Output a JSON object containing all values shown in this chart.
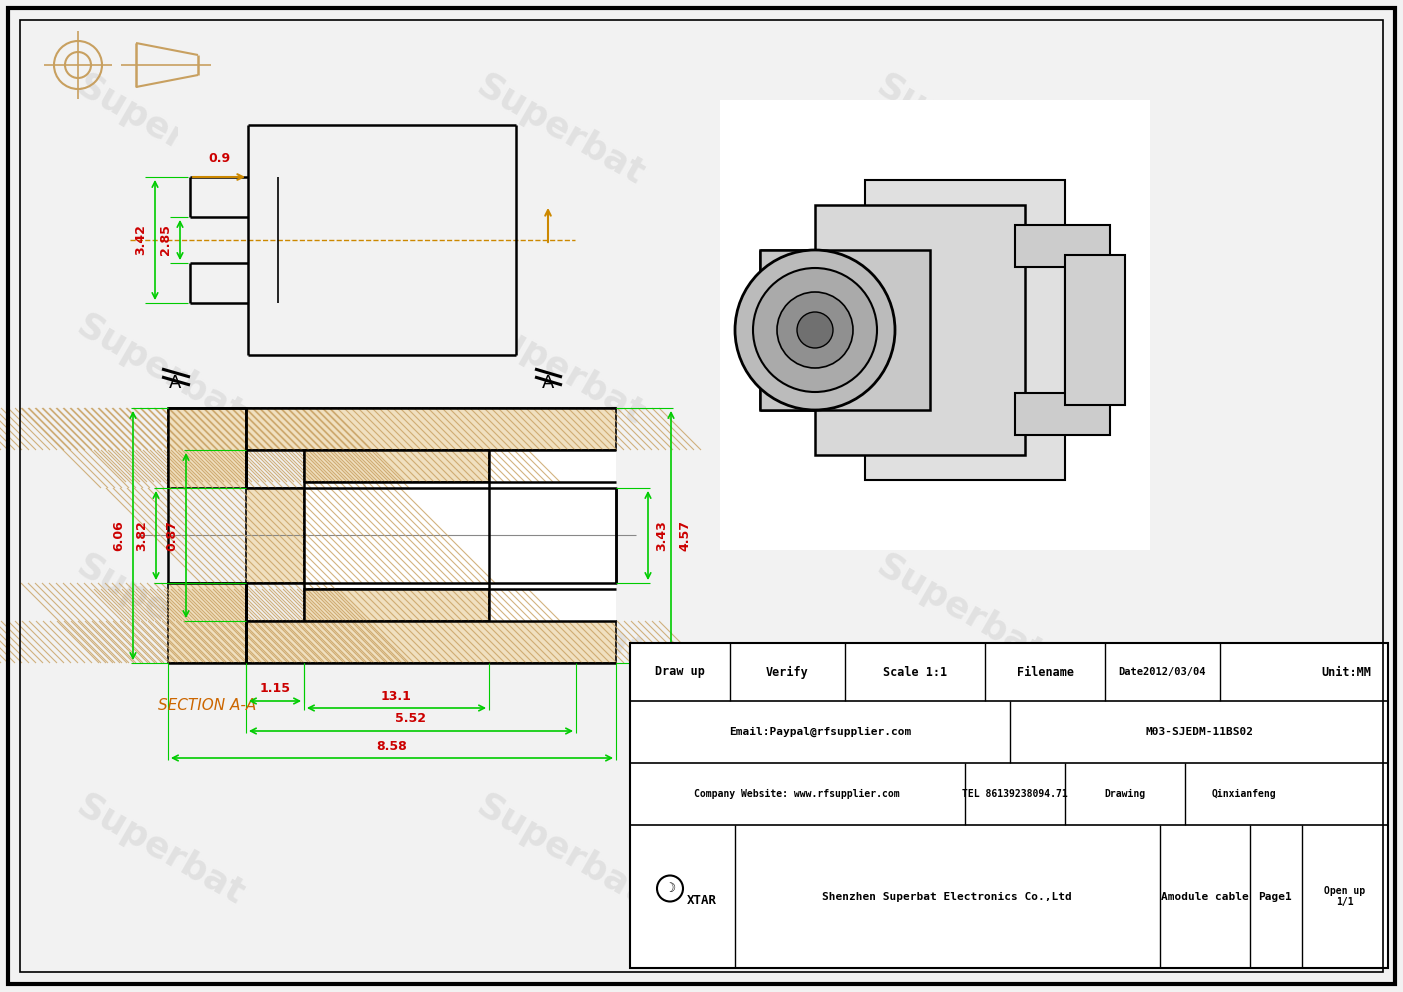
{
  "bg_color": "#f2f2f2",
  "border_color": "#000000",
  "line_color": "#000000",
  "dim_color": "#00cc00",
  "dim_color2": "#cc0000",
  "centerline_color": "#cc8800",
  "hatch_color": "#cc8800",
  "watermark_color": "#cccccc",
  "watermark_text": "Superbat",
  "dims_top": {
    "d342": "3.42",
    "d285": "2.85",
    "d09": "0.9"
  },
  "dims_section": {
    "d606": "6.06",
    "d382": "3.82",
    "d087": "0.87",
    "d343": "3.43",
    "d457": "4.57",
    "d115": "1.15",
    "d131": "13.1",
    "d552": "5.52",
    "d858": "8.58"
  }
}
